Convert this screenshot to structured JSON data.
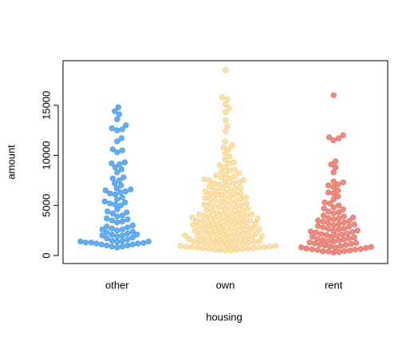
{
  "chart_data": {
    "type": "beeswarm",
    "xlabel": "housing",
    "ylabel": "amount",
    "categories": [
      "other",
      "own",
      "rent"
    ],
    "colors": [
      "#63adf2",
      "#fde0a6",
      "#f08a7e"
    ],
    "stroke_colors": [
      "#4d97df",
      "#f2cf8a",
      "#dc7064"
    ],
    "ylim": [
      -800,
      19450
    ],
    "yticks": [
      0,
      5000,
      10000,
      15000
    ],
    "values": [
      [
        1300,
        1400,
        1200,
        1000,
        900,
        800,
        1100,
        1500,
        1600,
        1800,
        1200,
        1300,
        1400,
        1000,
        900,
        1100,
        1250,
        1350,
        1450,
        1700,
        2000,
        2100,
        2200,
        1900,
        2300,
        2400,
        2000,
        2100,
        2600,
        2700,
        2800,
        2900,
        2500,
        3000,
        2600,
        3300,
        3500,
        3700,
        3900,
        3400,
        3600,
        4000,
        4200,
        4400,
        4600,
        4300,
        5000,
        5200,
        5400,
        5600,
        5800,
        5100,
        5300,
        6100,
        6300,
        6500,
        6700,
        6600,
        6200,
        6400,
        7000,
        7200,
        7500,
        7800,
        7700,
        8300,
        8600,
        8800,
        9100,
        9300,
        9200,
        10300,
        10500,
        10600,
        11400,
        11700,
        12500,
        12700,
        12600,
        13000,
        13600,
        14100,
        14400,
        14800
      ],
      [
        500,
        550,
        600,
        650,
        700,
        750,
        800,
        850,
        900,
        950,
        520,
        680,
        720,
        880,
        960,
        610,
        780,
        830,
        1000,
        1050,
        1100,
        1150,
        1200,
        1250,
        1300,
        1350,
        1400,
        1450,
        1500,
        1550,
        1600,
        1650,
        1700,
        1750,
        1800,
        1850,
        1900,
        1950,
        1020,
        1180,
        1320,
        1480,
        1620,
        1780,
        1920,
        2000,
        2050,
        2100,
        2150,
        2200,
        2250,
        2300,
        2350,
        2400,
        2450,
        2500,
        2550,
        2600,
        2650,
        2700,
        2750,
        2800,
        2850,
        2900,
        2950,
        2120,
        2380,
        2620,
        2880,
        3000,
        3050,
        3100,
        3150,
        3200,
        3250,
        3300,
        3350,
        3400,
        3450,
        3500,
        3550,
        3600,
        3650,
        3700,
        3750,
        3800,
        3850,
        3900,
        3950,
        3120,
        3480,
        3720,
        4000,
        4050,
        4100,
        4150,
        4200,
        4300,
        4400,
        4500,
        4600,
        4700,
        4800,
        4900,
        4250,
        4550,
        4850,
        4120,
        4680,
        5000,
        5100,
        5200,
        5300,
        5400,
        5500,
        5600,
        5700,
        5800,
        5900,
        5150,
        5450,
        5750,
        5050,
        5650,
        6000,
        6100,
        6200,
        6300,
        6400,
        6500,
        6600,
        6700,
        6800,
        6900,
        6150,
        6450,
        6750,
        6050,
        7000,
        7100,
        7200,
        7300,
        7400,
        7500,
        7600,
        7700,
        7800,
        7900,
        7250,
        7550,
        8000,
        8200,
        8400,
        8600,
        8800,
        8100,
        8500,
        9000,
        9300,
        9600,
        9900,
        9200,
        10200,
        10600,
        11000,
        11400,
        10800,
        12400,
        12900,
        13500,
        14300,
        14700,
        15100,
        15600,
        15800,
        18500
      ],
      [
        300,
        400,
        500,
        600,
        700,
        800,
        900,
        350,
        450,
        550,
        650,
        750,
        850,
        950,
        420,
        620,
        820,
        1000,
        1100,
        1200,
        1300,
        1400,
        1500,
        1600,
        1700,
        1800,
        1900,
        1050,
        1250,
        1450,
        1650,
        1850,
        1150,
        1550,
        2000,
        2100,
        2200,
        2300,
        2400,
        2500,
        2600,
        2700,
        2800,
        2900,
        2050,
        2350,
        2650,
        2950,
        2150,
        2450,
        3000,
        3100,
        3200,
        3300,
        3400,
        3500,
        3600,
        3700,
        3800,
        3900,
        3150,
        3450,
        3750,
        4000,
        4200,
        4400,
        4600,
        4800,
        4300,
        4700,
        5000,
        5300,
        5600,
        5900,
        5200,
        6200,
        6500,
        6800,
        7100,
        7400,
        6300,
        7000,
        7300,
        8300,
        8800,
        9400,
        9100,
        11500,
        11700,
        11800,
        12000,
        16000
      ]
    ]
  }
}
